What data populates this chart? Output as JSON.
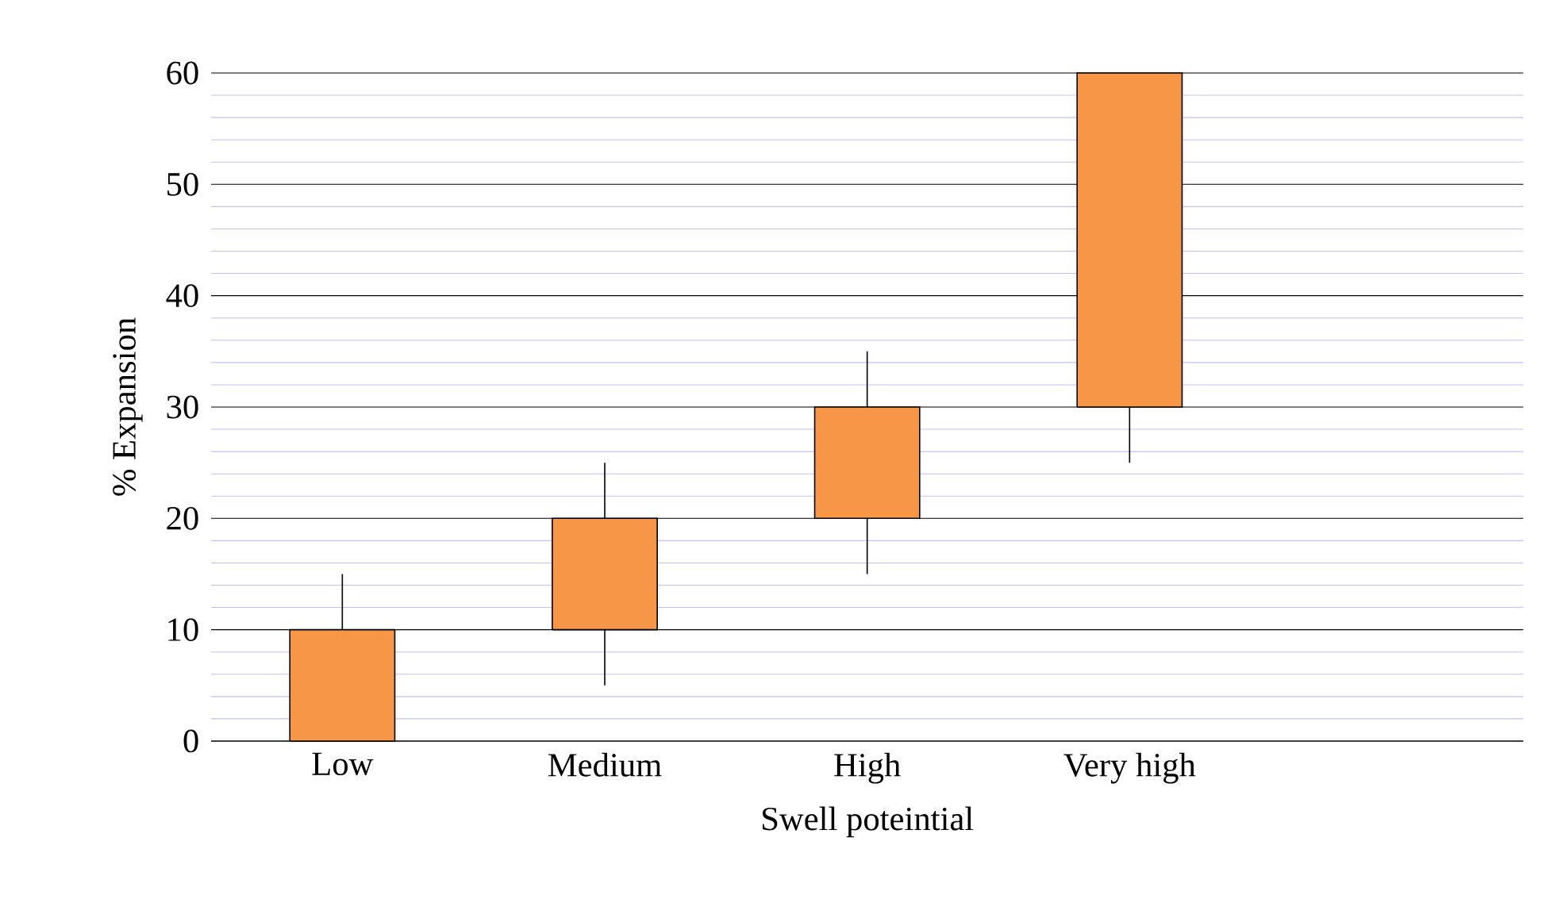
{
  "chart_data": {
    "type": "candlestick",
    "xlabel": "Swell poteintial",
    "ylabel": "% Expansion",
    "categories": [
      "Low",
      "Medium",
      "High",
      "Very high"
    ],
    "ohlc": [
      [
        0,
        15,
        0,
        10
      ],
      [
        10,
        25,
        5,
        20
      ],
      [
        20,
        35,
        15,
        30
      ],
      [
        30,
        60,
        25,
        60
      ]
    ],
    "color": "#f79646",
    "ylim": [
      0,
      60
    ],
    "yticks": [
      0,
      {
        "value": 2,
        "label": null
      },
      {
        "value": 4,
        "label": null
      },
      {
        "value": 6,
        "label": null
      },
      {
        "value": 8,
        "label": null
      },
      10,
      {
        "value": 12,
        "label": null
      },
      {
        "value": 14,
        "label": null
      },
      {
        "value": 16,
        "label": null
      },
      {
        "value": 18,
        "label": null
      },
      20,
      {
        "value": 22,
        "label": null
      },
      {
        "value": 24,
        "label": null
      },
      {
        "value": 26,
        "label": null
      },
      {
        "value": 28,
        "label": null
      },
      30,
      {
        "value": 32,
        "label": null
      },
      {
        "value": 34,
        "label": null
      },
      {
        "value": 36,
        "label": null
      },
      {
        "value": 38,
        "label": null
      },
      40,
      {
        "value": 42,
        "label": null
      },
      {
        "value": 44,
        "label": null
      },
      {
        "value": 46,
        "label": null
      },
      {
        "value": 48,
        "label": null
      },
      50,
      {
        "value": 52,
        "label": null
      },
      {
        "value": 54,
        "label": null
      },
      {
        "value": 56,
        "label": null
      },
      {
        "value": 58,
        "label": null
      },
      60
    ],
    "grid": "y"
  }
}
